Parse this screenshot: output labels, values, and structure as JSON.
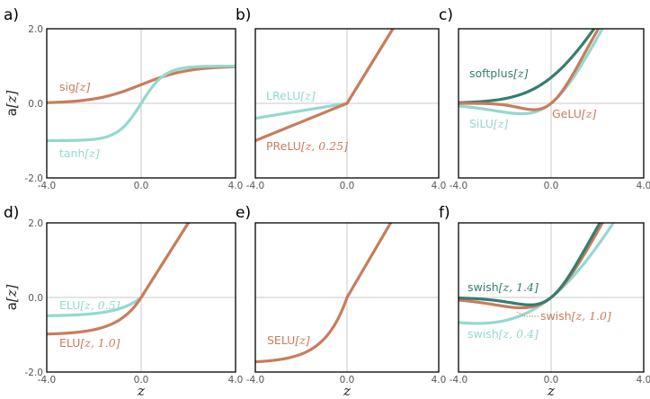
{
  "colors": {
    "brown": "#c87d5c",
    "teal": "#94d8d0",
    "darkteal": "#367d70"
  },
  "ylabel": "a[z]",
  "xlabel": "z",
  "xticks": [
    "-4.0",
    "0.0",
    "4.0"
  ],
  "yticks": [
    "2.0",
    "0.0",
    "-2.0"
  ],
  "chart_data": [
    {
      "type": "line",
      "panel": "a)",
      "xlim": [
        -4,
        4
      ],
      "ylim": [
        -2,
        2
      ],
      "series": [
        {
          "name": "sig[z]",
          "fn": "sig",
          "color": "brown"
        },
        {
          "name": "tanh[z]",
          "fn": "tanh",
          "color": "teal"
        }
      ]
    },
    {
      "type": "line",
      "panel": "b)",
      "xlim": [
        -4,
        4
      ],
      "ylim": [
        -2,
        2
      ],
      "series": [
        {
          "name": "LReLU[z]",
          "fn": "lrelu",
          "color": "teal"
        },
        {
          "name": "PReLU[z, 0.25]",
          "fn": "prelu",
          "param": 0.25,
          "color": "brown"
        }
      ]
    },
    {
      "type": "line",
      "panel": "c)",
      "xlim": [
        -4,
        4
      ],
      "ylim": [
        -2,
        2
      ],
      "series": [
        {
          "name": "softplus[z]",
          "fn": "softplus",
          "color": "darkteal"
        },
        {
          "name": "SiLU[z]",
          "fn": "silu",
          "color": "teal"
        },
        {
          "name": "GeLU[z]",
          "fn": "gelu",
          "color": "brown"
        }
      ]
    },
    {
      "type": "line",
      "panel": "d)",
      "xlim": [
        -4,
        4
      ],
      "ylim": [
        -2,
        2
      ],
      "series": [
        {
          "name": "ELU[z, 0.5]",
          "fn": "elu",
          "param": 0.5,
          "color": "teal"
        },
        {
          "name": "ELU[z, 1.0]",
          "fn": "elu",
          "param": 1.0,
          "color": "brown"
        }
      ]
    },
    {
      "type": "line",
      "panel": "e)",
      "xlim": [
        -4,
        4
      ],
      "ylim": [
        -2,
        2
      ],
      "series": [
        {
          "name": "SELU[z]",
          "fn": "selu",
          "color": "brown"
        }
      ]
    },
    {
      "type": "line",
      "panel": "f)",
      "xlim": [
        -4,
        4
      ],
      "ylim": [
        -2,
        2
      ],
      "series": [
        {
          "name": "swish[z, 0.4]",
          "fn": "swish",
          "param": 0.4,
          "color": "teal"
        },
        {
          "name": "swish[z, 1.0]",
          "fn": "swish",
          "param": 1.0,
          "color": "brown"
        },
        {
          "name": "swish[z, 1.4]",
          "fn": "swish",
          "param": 1.4,
          "color": "darkteal"
        }
      ]
    }
  ]
}
